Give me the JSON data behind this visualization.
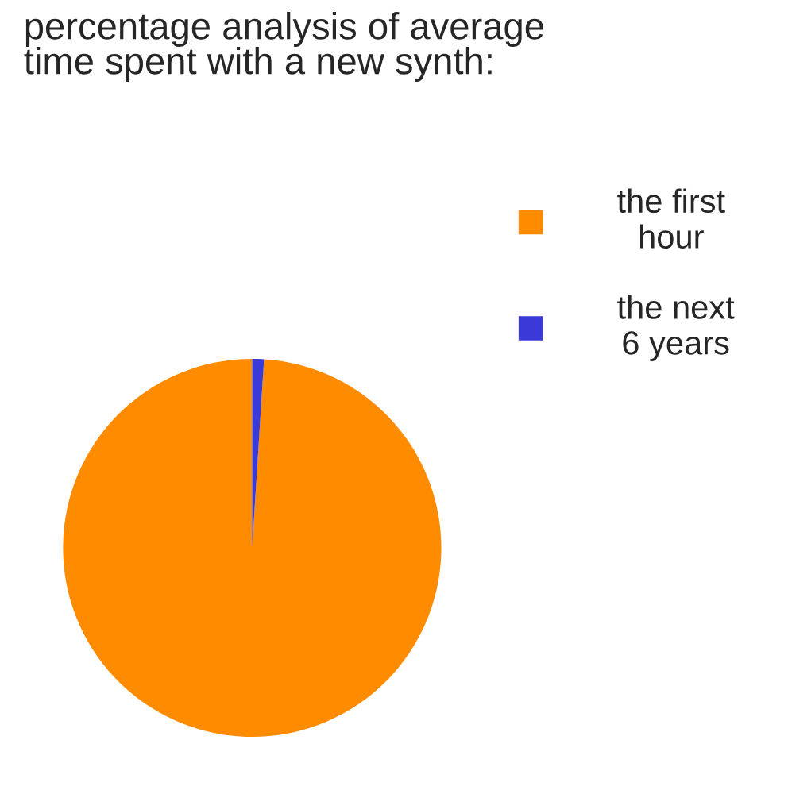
{
  "chart_data": {
    "type": "pie",
    "title": "percentage analysis of average\ntime spent with a new synth:",
    "categories": [
      "the first\nhour",
      "the next\n6 years"
    ],
    "values": [
      99,
      1
    ],
    "colors": [
      "#ff8c00",
      "#3a3ad8"
    ],
    "legend": "top right"
  }
}
